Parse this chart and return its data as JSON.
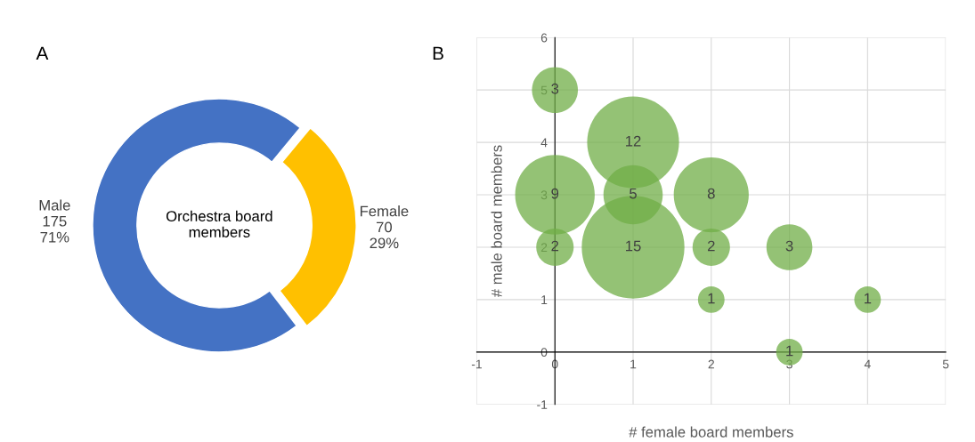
{
  "chart_data": [
    {
      "type": "donut",
      "title": "A",
      "categories": [
        "Male",
        "Female"
      ],
      "values": [
        175,
        70
      ],
      "colors": [
        "#4472c4",
        "#ffc000"
      ],
      "value_labels": [
        "175\n71%",
        "70\n29%"
      ],
      "annotations": [
        "Orchestra board\nmembers"
      ]
    },
    {
      "type": "bubble",
      "title": "B",
      "xlabel": "# female board members",
      "ylabel": "# male board members",
      "series": [
        {
          "color": "#70ad47",
          "x": [
            0,
            1,
            0,
            1,
            2,
            0,
            1,
            2,
            3,
            2,
            4,
            3
          ],
          "values": [
            5,
            4,
            3,
            3,
            3,
            2,
            2,
            2,
            2,
            1,
            1,
            0
          ],
          "sizes": [
            0.2,
            0.8,
            0.6,
            0.333,
            0.533,
            0.133,
            1,
            0.133,
            0.2,
            0.067,
            0.067,
            0.067
          ]
        }
      ],
      "annotations": [
        {
          "text": "3",
          "x": 0,
          "y": 5
        },
        {
          "text": "12",
          "x": 1,
          "y": 4
        },
        {
          "text": "9",
          "x": 0,
          "y": 3
        },
        {
          "text": "5",
          "x": 1,
          "y": 3
        },
        {
          "text": "8",
          "x": 2,
          "y": 3
        },
        {
          "text": "2",
          "x": 0,
          "y": 2
        },
        {
          "text": "15",
          "x": 1,
          "y": 2
        },
        {
          "text": "2",
          "x": 2,
          "y": 2
        },
        {
          "text": "3",
          "x": 3,
          "y": 2
        },
        {
          "text": "1",
          "x": 2,
          "y": 1
        },
        {
          "text": "1",
          "x": 4,
          "y": 1
        },
        {
          "text": "1",
          "x": 3,
          "y": 0
        }
      ],
      "xlim": [
        -1,
        5
      ],
      "ylim": [
        -1,
        6
      ],
      "xticks": [
        -1,
        0,
        1,
        2,
        3,
        4,
        5
      ],
      "yticks": [
        -1,
        0,
        1,
        2,
        3,
        4,
        5,
        6
      ],
      "grid": true
    }
  ]
}
